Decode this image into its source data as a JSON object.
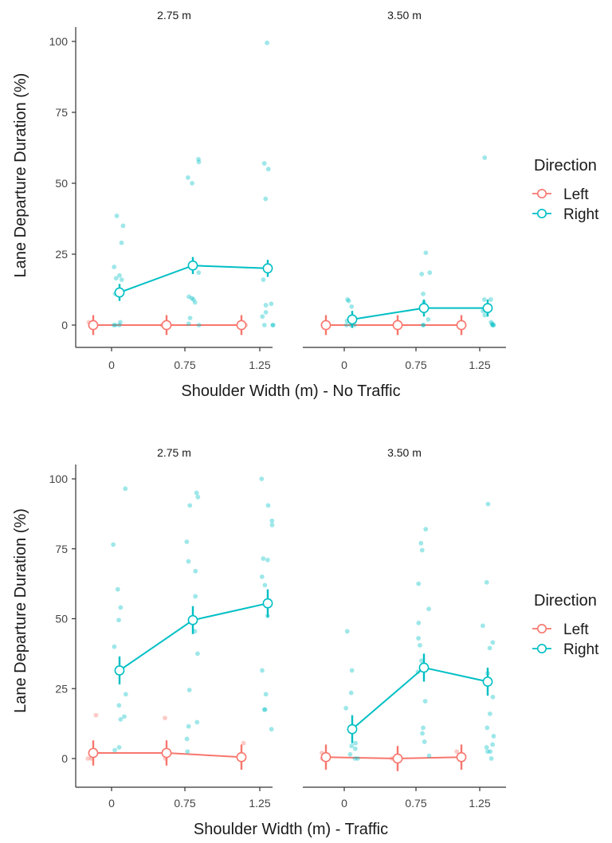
{
  "chart_data": [
    {
      "type": "line",
      "xlabel": "Shoulder Width (m) - No Traffic",
      "ylabel": "Lane Departure Duration (%)",
      "x_categories": [
        "0",
        "0.75",
        "1.25"
      ],
      "y_ticks": [
        "0",
        "25",
        "50",
        "75",
        "100"
      ],
      "ylim": [
        -8,
        104
      ],
      "grid": false,
      "legend": {
        "title": "Direction",
        "position": "right",
        "entries": [
          {
            "name": "Left",
            "color": "#F8766D"
          },
          {
            "name": "Right",
            "color": "#00BFC4"
          }
        ]
      },
      "panels": [
        {
          "strip": "2.75 m",
          "series": [
            {
              "name": "Left",
              "color": "#F8766D",
              "means": [
                0,
                0,
                0
              ],
              "errors": [
                3.5,
                3.5,
                3.5
              ],
              "points": [
                [
                  0,
                  0
                ],
                [
                  0,
                  0
                ],
                [
                  0,
                  1
                ],
                [
                  0,
                  0
                ],
                [
                  0.75,
                  0
                ],
                [
                  0.75,
                  0
                ],
                [
                  0.75,
                  0
                ],
                [
                  1.25,
                  0
                ],
                [
                  1.25,
                  0
                ],
                [
                  1.25,
                  0
                ]
              ]
            },
            {
              "name": "Right",
              "color": "#00BFC4",
              "means": [
                11.5,
                21,
                20
              ],
              "errors": [
                3.0,
                3.0,
                3.0
              ],
              "points": [
                [
                  0,
                  38.5
                ],
                [
                  0,
                  35
                ],
                [
                  0,
                  29
                ],
                [
                  0,
                  20.5
                ],
                [
                  0,
                  17.5
                ],
                [
                  0,
                  16.5
                ],
                [
                  0,
                  16
                ],
                [
                  0,
                  11
                ],
                [
                  0,
                  1
                ],
                [
                  0,
                  0
                ],
                [
                  0,
                  0
                ],
                [
                  0,
                  0
                ],
                [
                  0.75,
                  58.5
                ],
                [
                  0.75,
                  57.5
                ],
                [
                  0.75,
                  52
                ],
                [
                  0.75,
                  50
                ],
                [
                  0.75,
                  18.5
                ],
                [
                  0.75,
                  10
                ],
                [
                  0.75,
                  9.5
                ],
                [
                  0.75,
                  9
                ],
                [
                  0.75,
                  8
                ],
                [
                  0.75,
                  2.5
                ],
                [
                  0.75,
                  0.5
                ],
                [
                  0.75,
                  0
                ],
                [
                  1.25,
                  99.5
                ],
                [
                  1.25,
                  57
                ],
                [
                  1.25,
                  55
                ],
                [
                  1.25,
                  44.5
                ],
                [
                  1.25,
                  16
                ],
                [
                  1.25,
                  7.5
                ],
                [
                  1.25,
                  7
                ],
                [
                  1.25,
                  4.5
                ],
                [
                  1.25,
                  3
                ],
                [
                  1.25,
                  0
                ],
                [
                  1.25,
                  0
                ],
                [
                  1.25,
                  0
                ]
              ]
            }
          ]
        },
        {
          "strip": "3.50 m",
          "series": [
            {
              "name": "Left",
              "color": "#F8766D",
              "means": [
                0,
                0,
                0
              ],
              "errors": [
                3.5,
                3.5,
                3.5
              ],
              "points": [
                [
                  0,
                  0
                ],
                [
                  0,
                  0
                ],
                [
                  0.75,
                  0
                ],
                [
                  0.75,
                  0
                ],
                [
                  1.25,
                  0
                ],
                [
                  1.25,
                  0
                ]
              ]
            },
            {
              "name": "Right",
              "color": "#00BFC4",
              "means": [
                2,
                6,
                6
              ],
              "errors": [
                3.0,
                3.0,
                3.0
              ],
              "points": [
                [
                  0,
                  9
                ],
                [
                  0,
                  8.5
                ],
                [
                  0,
                  6.5
                ],
                [
                  0,
                  1.5
                ],
                [
                  0,
                  0
                ],
                [
                  0,
                  0
                ],
                [
                  0,
                  0
                ],
                [
                  0.75,
                  25.5
                ],
                [
                  0.75,
                  18.5
                ],
                [
                  0.75,
                  18
                ],
                [
                  0.75,
                  11
                ],
                [
                  0.75,
                  8
                ],
                [
                  0.75,
                  5
                ],
                [
                  0.75,
                  2
                ],
                [
                  0.75,
                  0
                ],
                [
                  0.75,
                  0
                ],
                [
                  1.25,
                  59
                ],
                [
                  1.25,
                  9
                ],
                [
                  1.25,
                  9
                ],
                [
                  1.25,
                  5
                ],
                [
                  1.25,
                  3.5
                ],
                [
                  1.25,
                  1
                ],
                [
                  1.25,
                  0.5
                ],
                [
                  1.25,
                  0
                ],
                [
                  1.25,
                  0
                ],
                [
                  1.25,
                  0
                ]
              ]
            }
          ]
        }
      ]
    },
    {
      "type": "line",
      "xlabel": "Shoulder Width (m) - Traffic",
      "ylabel": "Lane Departure Duration (%)",
      "x_categories": [
        "0",
        "0.75",
        "1.25"
      ],
      "y_ticks": [
        "0",
        "25",
        "50",
        "75",
        "100"
      ],
      "ylim": [
        -8,
        104
      ],
      "grid": false,
      "legend": {
        "title": "Direction",
        "position": "right",
        "entries": [
          {
            "name": "Left",
            "color": "#F8766D"
          },
          {
            "name": "Right",
            "color": "#00BFC4"
          }
        ]
      },
      "panels": [
        {
          "strip": "2.75 m",
          "series": [
            {
              "name": "Left",
              "color": "#F8766D",
              "means": [
                2,
                2,
                0.5
              ],
              "errors": [
                4.5,
                4.5,
                4.5
              ],
              "points": [
                [
                  0,
                  15.5
                ],
                [
                  0,
                  3
                ],
                [
                  0,
                  1
                ],
                [
                  0,
                  0
                ],
                [
                  0,
                  0
                ],
                [
                  0.75,
                  14.5
                ],
                [
                  0.75,
                  2
                ],
                [
                  0.75,
                  0
                ],
                [
                  1.25,
                  5.5
                ],
                [
                  1.25,
                  0
                ],
                [
                  1.25,
                  0
                ]
              ]
            },
            {
              "name": "Right",
              "color": "#00BFC4",
              "means": [
                31.5,
                49.5,
                55.5
              ],
              "errors": [
                5.0,
                5.0,
                5.0
              ],
              "points": [
                [
                  0,
                  96.5
                ],
                [
                  0,
                  76.5
                ],
                [
                  0,
                  60.5
                ],
                [
                  0,
                  54
                ],
                [
                  0,
                  49.5
                ],
                [
                  0,
                  40
                ],
                [
                  0,
                  23
                ],
                [
                  0,
                  19
                ],
                [
                  0,
                  15
                ],
                [
                  0,
                  14
                ],
                [
                  0,
                  4
                ],
                [
                  0,
                  3
                ],
                [
                  0.75,
                  95
                ],
                [
                  0.75,
                  93.5
                ],
                [
                  0.75,
                  90.5
                ],
                [
                  0.75,
                  77.5
                ],
                [
                  0.75,
                  70.5
                ],
                [
                  0.75,
                  67
                ],
                [
                  0.75,
                  58
                ],
                [
                  0.75,
                  45.5
                ],
                [
                  0.75,
                  37.5
                ],
                [
                  0.75,
                  24.5
                ],
                [
                  0.75,
                  13
                ],
                [
                  0.75,
                  11.5
                ],
                [
                  0.75,
                  7
                ],
                [
                  0.75,
                  2.5
                ],
                [
                  1.25,
                  100
                ],
                [
                  1.25,
                  90.5
                ],
                [
                  1.25,
                  85
                ],
                [
                  1.25,
                  83.5
                ],
                [
                  1.25,
                  71.5
                ],
                [
                  1.25,
                  71
                ],
                [
                  1.25,
                  65
                ],
                [
                  1.25,
                  62
                ],
                [
                  1.25,
                  51
                ],
                [
                  1.25,
                  31.5
                ],
                [
                  1.25,
                  23
                ],
                [
                  1.25,
                  17.5
                ],
                [
                  1.25,
                  17.5
                ],
                [
                  1.25,
                  10.5
                ]
              ]
            }
          ]
        },
        {
          "strip": "3.50 m",
          "series": [
            {
              "name": "Left",
              "color": "#F8766D",
              "means": [
                0.5,
                0,
                0.5
              ],
              "errors": [
                4.5,
                4.5,
                4.5
              ],
              "points": [
                [
                  0,
                  2
                ],
                [
                  0,
                  0
                ],
                [
                  0.75,
                  0
                ],
                [
                  0.75,
                  0
                ],
                [
                  1.25,
                  2.5
                ],
                [
                  1.25,
                  0
                ]
              ]
            },
            {
              "name": "Right",
              "color": "#00BFC4",
              "means": [
                10.5,
                32.5,
                27.5
              ],
              "errors": [
                5.0,
                5.0,
                5.0
              ],
              "points": [
                [
                  0,
                  45.5
                ],
                [
                  0,
                  31.5
                ],
                [
                  0,
                  23.5
                ],
                [
                  0,
                  18
                ],
                [
                  0,
                  5.5
                ],
                [
                  0,
                  4.5
                ],
                [
                  0,
                  3.5
                ],
                [
                  0,
                  1.5
                ],
                [
                  0,
                  0
                ],
                [
                  0,
                  0
                ],
                [
                  0.75,
                  82
                ],
                [
                  0.75,
                  77
                ],
                [
                  0.75,
                  74.5
                ],
                [
                  0.75,
                  62.5
                ],
                [
                  0.75,
                  53.5
                ],
                [
                  0.75,
                  48.5
                ],
                [
                  0.75,
                  43
                ],
                [
                  0.75,
                  40.5
                ],
                [
                  0.75,
                  35
                ],
                [
                  0.75,
                  31
                ],
                [
                  0.75,
                  20.5
                ],
                [
                  0.75,
                  11
                ],
                [
                  0.75,
                  9
                ],
                [
                  0.75,
                  6
                ],
                [
                  0.75,
                  1
                ],
                [
                  1.25,
                  91
                ],
                [
                  1.25,
                  63
                ],
                [
                  1.25,
                  47.5
                ],
                [
                  1.25,
                  41.5
                ],
                [
                  1.25,
                  39.5
                ],
                [
                  1.25,
                  30.5
                ],
                [
                  1.25,
                  22
                ],
                [
                  1.25,
                  16
                ],
                [
                  1.25,
                  11
                ],
                [
                  1.25,
                  8
                ],
                [
                  1.25,
                  5
                ],
                [
                  1.25,
                  4
                ],
                [
                  1.25,
                  2.5
                ],
                [
                  1.25,
                  2.5
                ],
                [
                  1.25,
                  0
                ]
              ]
            }
          ]
        }
      ]
    }
  ]
}
